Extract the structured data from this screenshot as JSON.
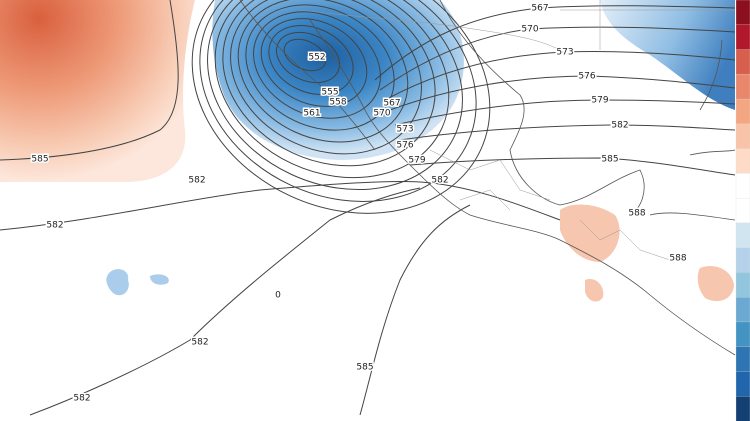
{
  "map": {
    "contour_labels": [
      "567",
      "570",
      "573",
      "576",
      "579",
      "582",
      "585",
      "585",
      "582",
      "582",
      "582",
      "582",
      "585",
      "582",
      "579",
      "576",
      "573",
      "570",
      "567",
      "552",
      "555",
      "558",
      "561",
      "588",
      "588",
      "0"
    ]
  }
}
